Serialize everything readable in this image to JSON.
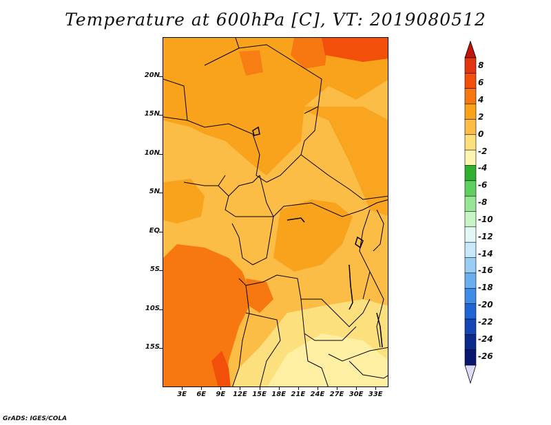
{
  "title": "Temperature at 600hPa [C], VT: 2019080512",
  "credit": "GrADS: IGES/COLA",
  "map": {
    "lat_labels": [
      "20N",
      "15N",
      "10N",
      "5N",
      "EQ",
      "5S",
      "10S",
      "15S"
    ],
    "lon_labels": [
      "3E",
      "6E",
      "9E",
      "12E",
      "15E",
      "18E",
      "21E",
      "24E",
      "27E",
      "30E",
      "33E"
    ],
    "lat_values": [
      20,
      15,
      10,
      5,
      0,
      -5,
      -10,
      -15
    ],
    "lon_values": [
      3,
      6,
      9,
      12,
      15,
      18,
      21,
      24,
      27,
      30,
      33
    ],
    "lat_range": [
      -20,
      25
    ],
    "lon_range": [
      0,
      35
    ]
  },
  "colorbar": {
    "labels": [
      "8",
      "6",
      "4",
      "2",
      "0",
      "-2",
      "-4",
      "-6",
      "-8",
      "-10",
      "-12",
      "-14",
      "-16",
      "-18",
      "-20",
      "-22",
      "-24",
      "-26"
    ],
    "colors_top_to_bottom": [
      "#e2340f",
      "#f24f0a",
      "#f77810",
      "#f9a21b",
      "#fbbd45",
      "#fde07e",
      "#fef4b0",
      "#2fb02f",
      "#5fd05f",
      "#96e696",
      "#c8f5c8",
      "#e4f7f7",
      "#c8e8fb",
      "#9acdf3",
      "#6aaef0",
      "#3f8ce6",
      "#1f66d4",
      "#1446b4",
      "#0c2a8c",
      "#0a1770"
    ],
    "top_triangle_color": "#c1140a",
    "bottom_triangle_color": "#dcdcf7"
  }
}
